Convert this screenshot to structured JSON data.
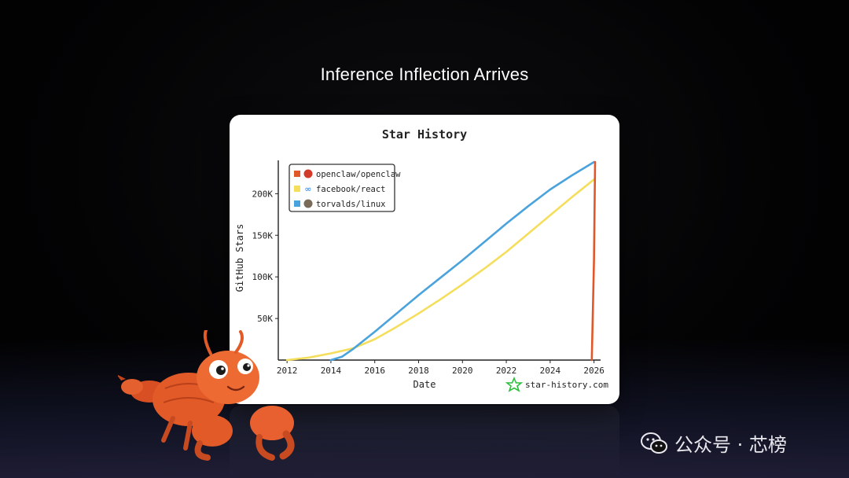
{
  "slide": {
    "title": "Inference Inflection Arrives"
  },
  "watermark": {
    "text": "公众号 · 芯榜",
    "icon": "wechat-icon"
  },
  "colors": {
    "openclaw": "#e0582a",
    "react": "#f4de5c",
    "linux": "#4aa3dd"
  },
  "chart_data": {
    "type": "line",
    "title": "Star History",
    "xlabel": "Date",
    "ylabel": "GitHub Stars",
    "brand": "star-history.com",
    "x_ticks": [
      "2012",
      "2014",
      "2016",
      "2018",
      "2020",
      "2022",
      "2024",
      "2026"
    ],
    "y_ticks": [
      "50K",
      "100K",
      "150K",
      "200K"
    ],
    "xlim": [
      2011.6,
      2026.3
    ],
    "ylim": [
      0,
      240000
    ],
    "legend_position": "top-left",
    "grid": false,
    "series": [
      {
        "name": "openclaw/openclaw",
        "icon": "openclaw-avatar",
        "points": [
          [
            2025.9,
            0
          ],
          [
            2026.0,
            120000
          ],
          [
            2026.05,
            238000
          ]
        ]
      },
      {
        "name": "facebook/react",
        "icon": "meta-icon",
        "points": [
          [
            2012.0,
            0
          ],
          [
            2013.0,
            3000
          ],
          [
            2014.0,
            8000
          ],
          [
            2015.0,
            14000
          ],
          [
            2016.0,
            25000
          ],
          [
            2017.0,
            40000
          ],
          [
            2018.0,
            56000
          ],
          [
            2019.0,
            73000
          ],
          [
            2020.0,
            91000
          ],
          [
            2021.0,
            110000
          ],
          [
            2022.0,
            130000
          ],
          [
            2023.0,
            152000
          ],
          [
            2024.0,
            174000
          ],
          [
            2025.0,
            196000
          ],
          [
            2026.0,
            217000
          ]
        ]
      },
      {
        "name": "torvalds/linux",
        "icon": "torvalds-avatar",
        "points": [
          [
            2014.0,
            0
          ],
          [
            2014.5,
            4000
          ],
          [
            2015.0,
            13000
          ],
          [
            2016.0,
            34000
          ],
          [
            2017.0,
            56000
          ],
          [
            2018.0,
            78000
          ],
          [
            2019.0,
            99000
          ],
          [
            2020.0,
            120000
          ],
          [
            2021.0,
            142000
          ],
          [
            2022.0,
            164000
          ],
          [
            2023.0,
            185000
          ],
          [
            2024.0,
            205000
          ],
          [
            2025.0,
            222000
          ],
          [
            2026.0,
            238000
          ]
        ]
      }
    ]
  }
}
